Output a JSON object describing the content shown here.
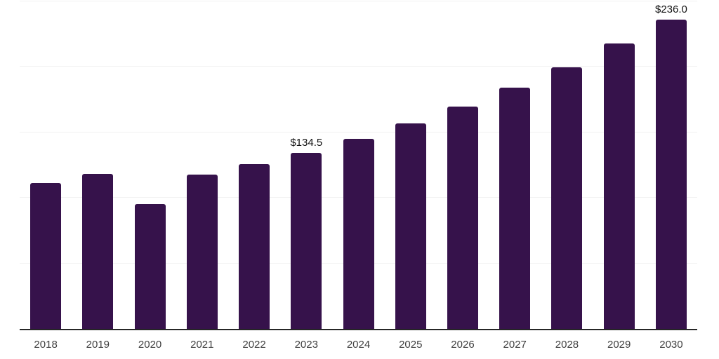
{
  "chart_data": {
    "type": "bar",
    "title": "",
    "xlabel": "",
    "ylabel": "",
    "categories": [
      "2018",
      "2019",
      "2020",
      "2021",
      "2022",
      "2023",
      "2024",
      "2025",
      "2026",
      "2027",
      "2028",
      "2029",
      "2030"
    ],
    "values": [
      111.5,
      118.5,
      95.0,
      117.5,
      125.5,
      134.5,
      145.0,
      157.0,
      169.5,
      184.0,
      199.5,
      218.0,
      236.0
    ],
    "data_labels": [
      {
        "category": "2023",
        "text": "$134.5"
      },
      {
        "category": "2030",
        "text": "$236.0"
      }
    ],
    "ylim": [
      0,
      251
    ],
    "gridline_values": [
      50,
      100,
      150,
      200,
      250
    ],
    "grid": "horizontal",
    "legend": "none",
    "colors": {
      "bar": "#36124B",
      "axis_line": "#262626",
      "gridline": "#f2f2f2",
      "tick_label": "#3f3f3f",
      "data_label": "#121212",
      "background": "#ffffff"
    }
  }
}
